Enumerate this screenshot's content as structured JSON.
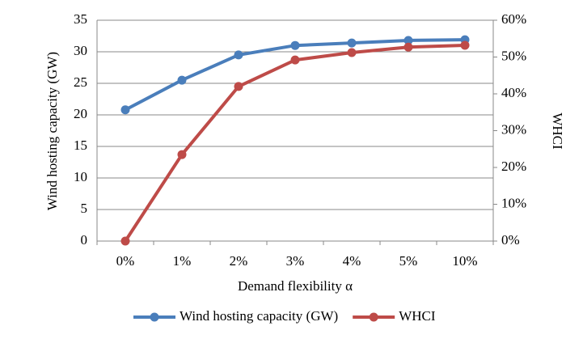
{
  "chart_data": {
    "type": "line",
    "x_label": "Demand flexibility α",
    "y_label": "Wind hosting capacity (GW)",
    "y2_label": "WHCI",
    "categories": [
      "0%",
      "1%",
      "2%",
      "3%",
      "4%",
      "5%",
      "10%"
    ],
    "series": [
      {
        "name": "Wind hosting capacity (GW)",
        "color": "#4a7ebb",
        "values": [
          20.8,
          25.5,
          29.5,
          31.0,
          31.4,
          31.8,
          31.9
        ]
      },
      {
        "name": "WHCI",
        "color": "#be4b48",
        "axis": "y2",
        "values": [
          0,
          23.5,
          42.0,
          49.2,
          51.2,
          52.7,
          53.2
        ]
      }
    ],
    "ylim": [
      0,
      35
    ],
    "yticks": [
      0,
      5,
      10,
      15,
      20,
      25,
      30,
      35
    ],
    "y2lim": [
      0,
      60
    ],
    "y2ticks": [
      {
        "value": 0,
        "label": "0%"
      },
      {
        "value": 10,
        "label": "10%"
      },
      {
        "value": 20,
        "label": "20%"
      },
      {
        "value": 30,
        "label": "30%"
      },
      {
        "value": 40,
        "label": "40%"
      },
      {
        "value": 50,
        "label": "50%"
      },
      {
        "value": 60,
        "label": "60%"
      }
    ],
    "grid": true,
    "legend": "bottom"
  }
}
